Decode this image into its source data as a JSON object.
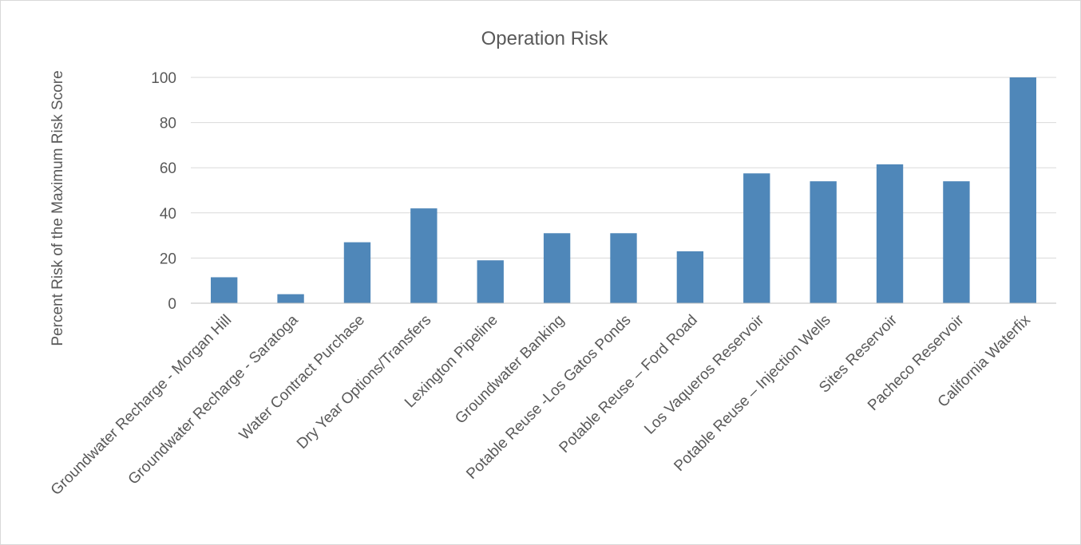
{
  "chart_data": {
    "type": "bar",
    "title": "Operation Risk",
    "xlabel": "",
    "ylabel": "Percent Risk of the Maximum Risk Score",
    "ylim": [
      0,
      100
    ],
    "yticks": [
      0,
      20,
      40,
      60,
      80,
      100
    ],
    "grid": true,
    "bar_color": "#4f87b9",
    "categories": [
      "Groundwater Recharge - Morgan Hill",
      "Groundwater Recharge - Saratoga",
      "Water Contract Purchase",
      "Dry Year Options/Transfers",
      "Lexington Pipeline",
      "Groundwater Banking",
      "Potable Reuse -Los Gatos Ponds",
      "Potable Reuse – Ford Road",
      "Los Vaqueros Reservoir",
      "Potable Reuse – Injection Wells",
      "Sites Reservoir",
      "Pacheco Reservoir",
      "California Waterfix"
    ],
    "values": [
      11.5,
      4,
      27,
      42,
      19,
      31,
      31,
      23,
      57.5,
      54,
      61.5,
      54,
      100
    ]
  }
}
